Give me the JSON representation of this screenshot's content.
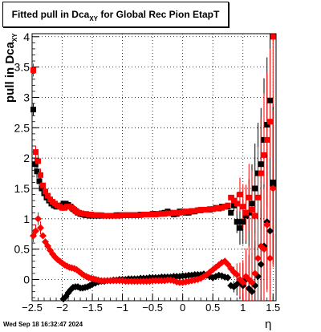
{
  "title": {
    "prefix": "Fitted pull in Dca",
    "sub": "XY",
    "suffix": " for Global Rec Pion EtapT"
  },
  "timestamp": "Wed Sep 18 16:32:47 2024",
  "chart_data": {
    "type": "scatter",
    "title": "Fitted pull in Dca XY for Global Rec Pion EtapT",
    "xlabel": "η",
    "ylabel": "pull in Dca XY",
    "xlim": [
      -2.5,
      1.55
    ],
    "ylim": [
      -0.35,
      4.05
    ],
    "x_ticks": [
      "−2.5",
      "−2",
      "−1.5",
      "−1",
      "−0.5",
      "0",
      "0.5",
      "1",
      "1.5"
    ],
    "y_ticks": [
      "0",
      "0.5",
      "1",
      "1.5",
      "2",
      "2.5",
      "3",
      "3.5",
      "4"
    ],
    "grid": true,
    "series": [
      {
        "color": "#000000",
        "marker": "square",
        "x": [
          -2.48,
          -2.45,
          -2.42,
          -2.38,
          -2.34,
          -2.3,
          -2.26,
          -2.22,
          -2.18,
          -2.14,
          -2.1,
          -2.06,
          -2.02,
          -1.98,
          -1.94,
          -1.9,
          -1.86,
          -1.82,
          -1.78,
          -1.74,
          -1.7,
          -1.66,
          -1.62,
          -1.58,
          -1.54,
          -1.5,
          -1.45,
          -1.4,
          -1.35,
          -1.3,
          -1.25,
          -1.2,
          -1.15,
          -1.1,
          -1.05,
          -1.0,
          -0.95,
          -0.9,
          -0.85,
          -0.8,
          -0.75,
          -0.7,
          -0.65,
          -0.6,
          -0.55,
          -0.5,
          -0.45,
          -0.4,
          -0.35,
          -0.3,
          -0.25,
          -0.2,
          -0.15,
          -0.1,
          -0.05,
          0.0,
          0.05,
          0.1,
          0.15,
          0.2,
          0.25,
          0.3,
          0.35,
          0.4,
          0.45,
          0.5,
          0.55,
          0.6,
          0.65,
          0.7,
          0.75,
          0.8,
          0.85,
          0.9,
          0.95,
          1.0,
          1.05,
          1.1,
          1.15,
          1.2,
          1.25,
          1.3,
          1.35,
          1.4,
          1.45,
          1.5
        ],
        "y": [
          2.8,
          1.9,
          1.78,
          1.62,
          1.5,
          1.42,
          1.35,
          1.3,
          1.25,
          1.22,
          1.2,
          1.2,
          1.22,
          1.25,
          1.25,
          1.23,
          1.2,
          1.16,
          1.13,
          1.1,
          1.08,
          1.07,
          1.06,
          1.06,
          1.05,
          1.05,
          1.05,
          1.05,
          1.05,
          1.05,
          1.05,
          1.05,
          1.05,
          1.06,
          1.06,
          1.06,
          1.06,
          1.06,
          1.06,
          1.06,
          1.06,
          1.07,
          1.07,
          1.07,
          1.07,
          1.08,
          1.08,
          1.08,
          1.09,
          1.1,
          1.12,
          1.1,
          1.07,
          1.08,
          1.12,
          1.12,
          1.1,
          1.1,
          1.12,
          1.12,
          1.14,
          1.14,
          1.15,
          1.15,
          1.15,
          1.16,
          1.18,
          1.17,
          1.2,
          1.2,
          1.2,
          1.1,
          1.22,
          0.95,
          0.85,
          0.95,
          1.05,
          1.1,
          1.25,
          1.5,
          1.75,
          1.9,
          2.3,
          2.55,
          2.95,
          1.6
        ]
      },
      {
        "color": "#ff0000",
        "marker": "square",
        "x": [
          -2.48,
          -2.44,
          -2.4,
          -2.36,
          -2.32,
          -2.28,
          -2.24,
          -2.2,
          -2.16,
          -2.12,
          -2.08,
          -2.04,
          -2.0,
          -1.96,
          -1.92,
          -1.88,
          -1.84,
          -1.8,
          -1.76,
          -1.72,
          -1.68,
          -1.64,
          -1.6,
          -1.56,
          -1.52,
          -1.48,
          -1.44,
          -1.4,
          -1.35,
          -1.3,
          -1.25,
          -1.2,
          -1.15,
          -1.1,
          -1.05,
          -1.0,
          -0.95,
          -0.9,
          -0.85,
          -0.8,
          -0.75,
          -0.7,
          -0.65,
          -0.6,
          -0.55,
          -0.5,
          -0.45,
          -0.4,
          -0.35,
          -0.3,
          -0.25,
          -0.2,
          -0.15,
          -0.1,
          -0.05,
          0.0,
          0.05,
          0.1,
          0.15,
          0.2,
          0.25,
          0.3,
          0.35,
          0.4,
          0.45,
          0.5,
          0.55,
          0.6,
          0.65,
          0.7,
          0.75,
          0.8,
          0.85,
          0.9,
          0.95,
          1.0,
          1.05,
          1.1,
          1.15,
          1.2,
          1.25,
          1.3,
          1.35,
          1.4,
          1.45,
          1.5
        ],
        "y": [
          3.45,
          2.1,
          1.95,
          1.72,
          1.55,
          1.45,
          1.38,
          1.32,
          1.28,
          1.25,
          1.22,
          1.2,
          1.18,
          1.18,
          1.2,
          1.2,
          1.18,
          1.15,
          1.12,
          1.1,
          1.09,
          1.08,
          1.08,
          1.07,
          1.07,
          1.06,
          1.06,
          1.06,
          1.06,
          1.05,
          1.05,
          1.05,
          1.05,
          1.05,
          1.05,
          1.06,
          1.06,
          1.06,
          1.06,
          1.06,
          1.06,
          1.06,
          1.07,
          1.07,
          1.07,
          1.07,
          1.07,
          1.08,
          1.08,
          1.08,
          1.09,
          1.09,
          1.1,
          1.1,
          1.1,
          1.11,
          1.12,
          1.12,
          1.13,
          1.13,
          1.14,
          1.15,
          1.15,
          1.15,
          1.16,
          1.16,
          1.17,
          1.18,
          1.18,
          1.2,
          1.22,
          1.35,
          1.3,
          1.25,
          1.4,
          1.2,
          1.1,
          1.35,
          1.15,
          1.05,
          1.35,
          1.75,
          2.05,
          2.3,
          2.6,
          4.0
        ]
      },
      {
        "color": "#000000",
        "marker": "diamond",
        "x": [
          -1.98,
          -1.94,
          -1.9,
          -1.86,
          -1.82,
          -1.78,
          -1.74,
          -1.7,
          -1.66,
          -1.62,
          -1.58,
          -1.54,
          -1.5,
          -1.45,
          -1.4,
          -1.35,
          -1.3,
          -1.25,
          -1.2,
          -1.15,
          -1.1,
          -1.05,
          -1.0,
          -0.95,
          -0.9,
          -0.85,
          -0.8,
          -0.75,
          -0.7,
          -0.65,
          -0.6,
          -0.55,
          -0.5,
          -0.45,
          -0.4,
          -0.35,
          -0.3,
          -0.25,
          -0.2,
          -0.15,
          -0.1,
          -0.05,
          0.0,
          0.05,
          0.1,
          0.15,
          0.2,
          0.25,
          0.3,
          0.35,
          0.4,
          0.45,
          0.5,
          0.55,
          0.6,
          0.65,
          0.7,
          0.75,
          0.8,
          0.85,
          0.9,
          0.95,
          1.0,
          1.05,
          1.1,
          1.15,
          1.2,
          1.25,
          1.3,
          1.35,
          1.4,
          1.45,
          1.5
        ],
        "y": [
          -0.32,
          -0.28,
          -0.22,
          -0.17,
          -0.13,
          -0.12,
          -0.12,
          -0.14,
          -0.14,
          -0.13,
          -0.12,
          -0.1,
          -0.08,
          -0.06,
          -0.04,
          -0.03,
          -0.03,
          -0.02,
          -0.02,
          -0.01,
          -0.01,
          0.0,
          0.0,
          0.0,
          0.01,
          0.01,
          0.01,
          0.01,
          0.02,
          0.02,
          0.02,
          0.03,
          0.03,
          0.03,
          0.03,
          0.04,
          0.04,
          0.04,
          0.04,
          0.05,
          0.05,
          0.05,
          0.06,
          0.06,
          0.07,
          0.07,
          0.08,
          0.08,
          0.08,
          0.09,
          0.07,
          0.05,
          0.03,
          0.05,
          0.07,
          0.06,
          0.04,
          0.03,
          -0.1,
          -0.12,
          -0.08,
          -0.05,
          -0.1,
          0.0,
          -0.15,
          -0.2,
          -0.1,
          0.05,
          0.25,
          0.55,
          0.95,
          0.8,
          1.55
        ]
      },
      {
        "color": "#ff0000",
        "marker": "diamond",
        "x": [
          -2.48,
          -2.44,
          -2.4,
          -2.36,
          -2.32,
          -2.28,
          -2.24,
          -2.2,
          -2.16,
          -2.12,
          -2.08,
          -2.04,
          -2.0,
          -1.96,
          -1.92,
          -1.88,
          -1.84,
          -1.8,
          -1.76,
          -1.72,
          -1.68,
          -1.64,
          -1.6,
          -1.56,
          -1.52,
          -1.48,
          -1.44,
          -1.4,
          -1.35,
          -1.3,
          -1.25,
          -1.2,
          -1.15,
          -1.1,
          -1.05,
          -1.0,
          -0.95,
          -0.9,
          -0.85,
          -0.8,
          -0.75,
          -0.7,
          -0.65,
          -0.6,
          -0.55,
          -0.5,
          -0.45,
          -0.4,
          -0.35,
          -0.3,
          -0.25,
          -0.2,
          -0.15,
          -0.1,
          -0.05,
          0.0,
          0.05,
          0.1,
          0.15,
          0.2,
          0.25,
          0.3,
          0.35,
          0.4,
          0.45,
          0.5,
          0.55,
          0.6,
          0.65,
          0.7,
          0.75,
          0.8,
          0.85,
          0.9,
          0.95,
          1.0,
          1.05,
          1.1,
          1.15,
          1.2,
          1.25,
          1.3,
          1.35,
          1.4,
          1.45,
          1.5
        ],
        "y": [
          0.72,
          0.8,
          1.0,
          0.85,
          0.72,
          0.62,
          0.55,
          0.48,
          0.42,
          0.37,
          0.33,
          0.3,
          0.27,
          0.24,
          0.22,
          0.2,
          0.19,
          0.18,
          0.16,
          0.13,
          0.1,
          0.07,
          0.05,
          0.03,
          0.02,
          0.01,
          0.0,
          -0.01,
          -0.02,
          -0.02,
          -0.02,
          -0.02,
          -0.02,
          -0.02,
          -0.02,
          -0.02,
          -0.03,
          -0.03,
          -0.03,
          -0.03,
          -0.03,
          -0.03,
          -0.03,
          -0.03,
          -0.03,
          -0.02,
          -0.02,
          -0.02,
          -0.02,
          -0.02,
          -0.01,
          -0.01,
          -0.02,
          -0.04,
          -0.05,
          -0.05,
          -0.04,
          -0.03,
          -0.02,
          -0.01,
          0.0,
          0.02,
          0.05,
          0.08,
          0.12,
          0.16,
          0.2,
          0.24,
          0.28,
          0.3,
          0.25,
          0.18,
          0.12,
          0.08,
          0.0,
          -0.05,
          0.05,
          0.0,
          -0.05,
          0.1,
          0.35,
          0.55,
          0.5,
          0.9,
          0.35,
          1.5
        ]
      }
    ]
  }
}
